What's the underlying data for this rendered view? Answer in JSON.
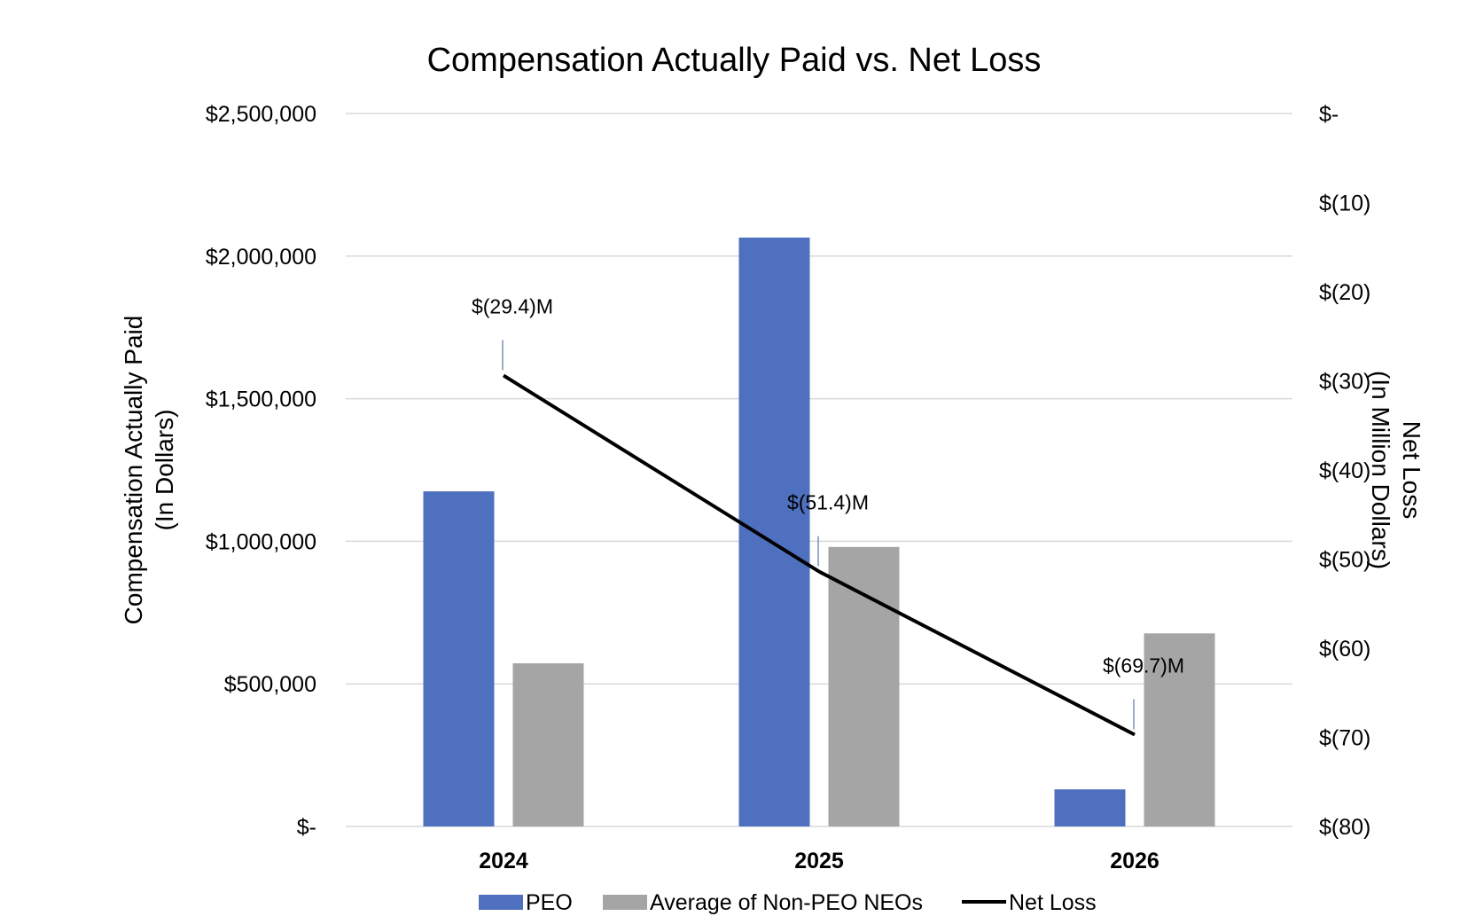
{
  "chart_data": {
    "type": "bar",
    "title": "Compensation Actually Paid vs. Net Loss",
    "categories": [
      "2024",
      "2025",
      "2026"
    ],
    "series": [
      {
        "name": "PEO",
        "type": "bar",
        "axis": "left",
        "color": "#4F6FBF",
        "values": [
          1175000,
          2065000,
          130000
        ]
      },
      {
        "name": "Average of Non-PEO NEOs",
        "type": "bar",
        "axis": "left",
        "color": "#A5A5A5",
        "values": [
          572000,
          980000,
          677000
        ]
      },
      {
        "name": "Net Loss",
        "type": "line",
        "axis": "right",
        "color": "#000000",
        "values": [
          -29.4,
          -51.4,
          -69.7
        ]
      }
    ],
    "data_labels": [
      "$(29.4)M",
      "$(51.4)M",
      "$(69.7)M"
    ],
    "y_left": {
      "label_lines": [
        "Compensation Actually Paid",
        "(In Dollars)"
      ],
      "range": [
        0,
        2500000
      ],
      "ticks": [
        0,
        500000,
        1000000,
        1500000,
        2000000,
        2500000
      ],
      "tick_labels": [
        "$-",
        "$500,000",
        "$1,000,000",
        "$1,500,000",
        "$2,000,000",
        "$2,500,000"
      ]
    },
    "y_right": {
      "label_lines": [
        "Net Loss",
        "(In Million Dollars)"
      ],
      "range": [
        -80,
        0
      ],
      "ticks": [
        0,
        -10,
        -20,
        -30,
        -40,
        -50,
        -60,
        -70,
        -80
      ],
      "tick_labels": [
        "$-",
        "$(10)",
        "$(20)",
        "$(30)",
        "$(40)",
        "$(50)",
        "$(60)",
        "$(70)",
        "$(80)"
      ]
    },
    "grid": true,
    "legend_position": "bottom"
  }
}
